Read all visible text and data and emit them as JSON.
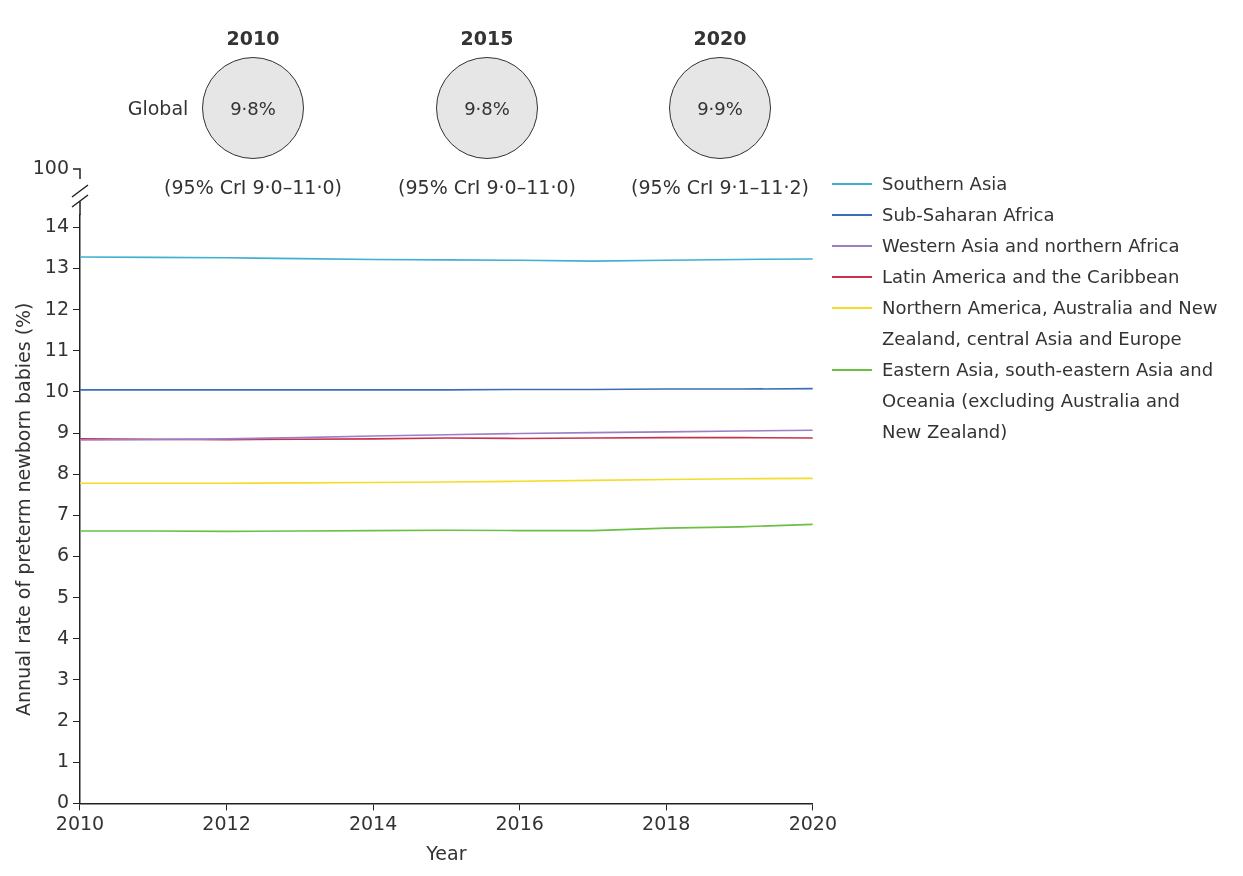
{
  "chart_data": {
    "type": "line",
    "xlabel": "Year",
    "ylabel": "Annual rate of preterm newborn babies (%)",
    "annotations": [
      "Global",
      "2010",
      "9·8%",
      "(95% CrI 9·0–11·0)",
      "2015",
      "9·8%",
      "(95% CrI 9·0–11·0)",
      "2020",
      "9·9%",
      "(95% CrI 9·1–11·2)",
      "100"
    ],
    "x": [
      2010,
      2011,
      2012,
      2013,
      2014,
      2015,
      2016,
      2017,
      2018,
      2019,
      2020
    ],
    "series": [
      {
        "name": "Southern Asia",
        "color": "#3fb0d0",
        "values": [
          13.28,
          13.27,
          13.26,
          13.24,
          13.22,
          13.21,
          13.2,
          13.18,
          13.2,
          13.22,
          13.23
        ]
      },
      {
        "name": "Sub-Saharan Africa",
        "color": "#3a6fb8",
        "values": [
          10.05,
          10.05,
          10.05,
          10.05,
          10.05,
          10.05,
          10.06,
          10.06,
          10.07,
          10.07,
          10.08
        ]
      },
      {
        "name": "Western Asia and northern Africa",
        "color": "#9b7fc4",
        "values": [
          8.83,
          8.84,
          8.86,
          8.89,
          8.93,
          8.96,
          8.99,
          9.01,
          9.03,
          9.05,
          9.07
        ]
      },
      {
        "name": "Latin America and the Caribbean",
        "color": "#c8324e",
        "values": [
          8.86,
          8.85,
          8.84,
          8.85,
          8.86,
          8.88,
          8.87,
          8.88,
          8.89,
          8.89,
          8.88
        ]
      },
      {
        "name": "Northern America, Australia and New Zealand, central Asia and Europe",
        "color": "#f5dc2a",
        "values": [
          7.78,
          7.78,
          7.78,
          7.79,
          7.8,
          7.81,
          7.83,
          7.85,
          7.87,
          7.89,
          7.9
        ]
      },
      {
        "name": "Eastern Asia, south-eastern Asia and Oceania (excluding Australia and New Zealand)",
        "color": "#6cbf45",
        "values": [
          6.62,
          6.62,
          6.61,
          6.62,
          6.63,
          6.64,
          6.63,
          6.63,
          6.69,
          6.72,
          6.78
        ]
      }
    ],
    "xlim": [
      2010,
      2020
    ],
    "xticks": [
      2010,
      2012,
      2014,
      2016,
      2018,
      2020
    ],
    "ylim": [
      0,
      14.3
    ],
    "yticks": [
      0,
      1,
      2,
      3,
      4,
      5,
      6,
      7,
      8,
      9,
      10,
      11,
      12,
      13,
      14
    ],
    "grid": false,
    "legend": "right",
    "marker": "none",
    "line_style": "solid"
  }
}
